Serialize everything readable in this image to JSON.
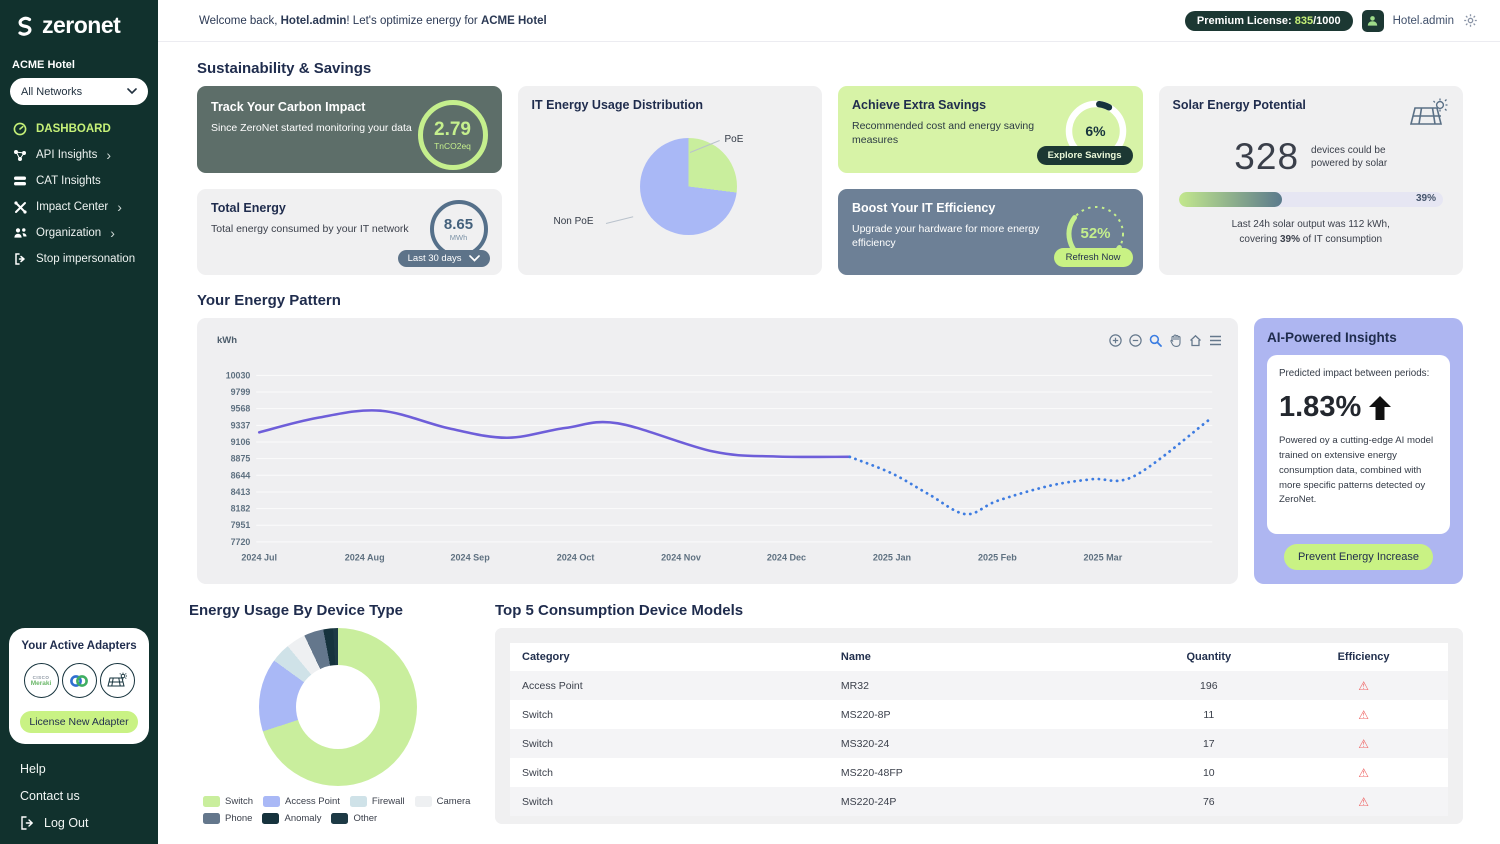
{
  "brand": {
    "name": "zeronet"
  },
  "sidebar": {
    "org": "ACME Hotel",
    "network_selector": "All Networks",
    "nav": [
      {
        "label": "DASHBOARD"
      },
      {
        "label": "API Insights"
      },
      {
        "label": "CAT Insights"
      },
      {
        "label": "Impact Center"
      },
      {
        "label": "Organization"
      },
      {
        "label": "Stop impersonation"
      }
    ],
    "adapters": {
      "title": "Your Active Adapters",
      "items": [
        "Cisco Meraki",
        "Loop",
        "Solar"
      ],
      "license_button": "License New Adapter"
    },
    "footer": {
      "help": "Help",
      "contact": "Contact us",
      "logout": "Log Out"
    }
  },
  "header": {
    "welcome_pre": "Welcome back, ",
    "welcome_user": "Hotel.admin",
    "welcome_mid": "! Let's optimize energy for ",
    "welcome_org": "ACME Hotel",
    "license_label": "Premium License: ",
    "license_used": "835",
    "license_total": "/1000",
    "account": "Hotel.admin"
  },
  "sections": {
    "sustainability": "Sustainability & Savings",
    "energy_pattern": "Your Energy Pattern",
    "device_type": "Energy Usage By Device Type",
    "top5": "Top 5 Consumption Device Models"
  },
  "cards": {
    "carbon": {
      "title": "Track Your Carbon Impact",
      "desc": "Since ZeroNet started monitoring your data",
      "value": "2.79",
      "unit": "TnCO2eq"
    },
    "total_energy": {
      "title": "Total Energy",
      "desc": "Total energy consumed by your IT network",
      "value": "8.65",
      "unit": "MWh",
      "range": "Last 30 days"
    },
    "distribution": {
      "title": "IT Energy Usage Distribution"
    },
    "savings": {
      "title": "Achieve Extra Savings",
      "desc": "Recommended cost and energy saving measures",
      "value": "6%",
      "button": "Explore Savings"
    },
    "efficiency": {
      "title": "Boost Your IT Efficiency",
      "desc": "Upgrade your hardware for more energy efficiency",
      "value": "52%",
      "button": "Refresh Now"
    },
    "solar": {
      "title": "Solar Energy Potential",
      "value": "328",
      "desc_1": "devices could be",
      "desc_2": "powered by solar",
      "percent": "39%",
      "caption_1": "Last 24h solar output was 112 kWh,",
      "caption_2_pre": "covering ",
      "caption_bold": "39%",
      "caption_2_post": " of IT consumption"
    }
  },
  "ai": {
    "title": "AI-Powered Insights",
    "subtitle": "Predicted impact between periods:",
    "value": "1.83%",
    "body": "Powered oy a cutting-edge AI model trained on extensive energy consumption data, combined with more specific patterns detected oy ZeroNet.",
    "button": "Prevent Energy Increase"
  },
  "table": {
    "headers": [
      "Category",
      "Name",
      "Quantity",
      "Efficiency"
    ],
    "rows": [
      {
        "category": "Access Point",
        "name": "MR32",
        "quantity": "196",
        "efficiency": "warning"
      },
      {
        "category": "Switch",
        "name": "MS220-8P",
        "quantity": "11",
        "efficiency": "warning"
      },
      {
        "category": "Switch",
        "name": "MS320-24",
        "quantity": "17",
        "efficiency": "warning"
      },
      {
        "category": "Switch",
        "name": "MS220-48FP",
        "quantity": "10",
        "efficiency": "warning"
      },
      {
        "category": "Switch",
        "name": "MS220-24P",
        "quantity": "76",
        "efficiency": "warning"
      }
    ]
  },
  "chart_data": [
    {
      "id": "energy_pattern",
      "type": "line",
      "title": "Your Energy Pattern",
      "ylabel": "kWh",
      "ylim": [
        7720,
        10030
      ],
      "yticks": [
        10030,
        9799,
        9568,
        9337,
        9106,
        8875,
        8644,
        8413,
        8182,
        7951,
        7720
      ],
      "xticks": [
        "2024 Jul",
        "2024 Aug",
        "2024 Sep",
        "2024 Oct",
        "2024 Nov",
        "2024 Dec",
        "2025 Jan",
        "2025 Feb",
        "2025 Mar"
      ],
      "grid": true,
      "series": [
        {
          "name": "actual",
          "style": "solid",
          "color": "#6e5ed9",
          "points": [
            [
              0,
              9240
            ],
            [
              0.55,
              9440
            ],
            [
              1.15,
              9540
            ],
            [
              1.8,
              9295
            ],
            [
              2.35,
              9165
            ],
            [
              2.9,
              9300
            ],
            [
              3.4,
              9365
            ],
            [
              4.3,
              8975
            ],
            [
              4.9,
              8905
            ],
            [
              5.6,
              8900
            ]
          ]
        },
        {
          "name": "predicted",
          "style": "dotted",
          "color": "#3e7ce1",
          "points": [
            [
              5.6,
              8900
            ],
            [
              6.0,
              8670
            ],
            [
              6.35,
              8380
            ],
            [
              6.7,
              8105
            ],
            [
              7.0,
              8290
            ],
            [
              7.5,
              8500
            ],
            [
              7.9,
              8590
            ],
            [
              8.3,
              8635
            ],
            [
              9.0,
              9405
            ]
          ]
        }
      ]
    },
    {
      "id": "poe_distribution",
      "type": "pie",
      "labels": [
        "PoE",
        "Non PoE"
      ],
      "values": [
        27,
        73
      ],
      "colors": [
        "#c9ee9d",
        "#a9b8f6"
      ]
    },
    {
      "id": "device_type",
      "type": "donut",
      "labels": [
        "Switch",
        "Access Point",
        "Firewall",
        "Camera",
        "Phone",
        "Anomaly",
        "Other"
      ],
      "values": [
        70,
        15,
        4,
        4,
        4,
        2,
        1
      ],
      "colors": [
        "#c9ee9d",
        "#a9b8f6",
        "#cfe2e8",
        "#eef0f2",
        "#64778c",
        "#16333d",
        "#1d3a45"
      ]
    }
  ],
  "colors": {
    "accent_lime": "#c6f178",
    "dark_teal": "#11312d",
    "navy": "#1f2c4d",
    "warning_red": "#ef6464"
  }
}
